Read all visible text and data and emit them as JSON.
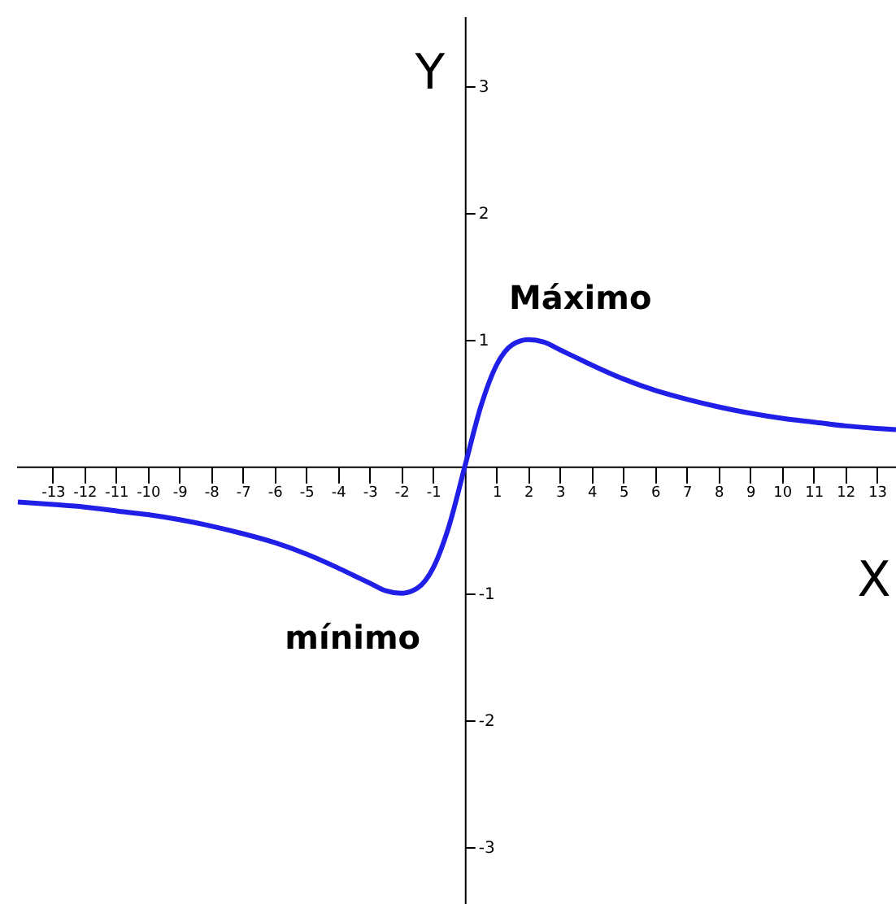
{
  "chart_data": {
    "type": "line",
    "xlabel": "X",
    "ylabel": "Y",
    "x": [
      -14.1,
      -13,
      -12,
      -11,
      -10,
      -9,
      -8,
      -7,
      -6,
      -5,
      -4,
      -3.5,
      -3,
      -2.5,
      -2,
      -1.5,
      -1,
      -0.5,
      0,
      0.5,
      1,
      1.5,
      2,
      2.5,
      3,
      3.5,
      4,
      5,
      6,
      7,
      8,
      9,
      10,
      11,
      12,
      13,
      13.6
    ],
    "series": [
      {
        "color": "#1f1fe8",
        "values": [
          -0.28,
          -0.3,
          -0.32,
          -0.35,
          -0.38,
          -0.42,
          -0.47,
          -0.53,
          -0.6,
          -0.69,
          -0.8,
          -0.86,
          -0.92,
          -0.98,
          -1.0,
          -0.96,
          -0.8,
          -0.47,
          0,
          0.47,
          0.8,
          0.96,
          1.0,
          0.98,
          0.92,
          0.86,
          0.8,
          0.69,
          0.6,
          0.53,
          0.47,
          0.42,
          0.38,
          0.35,
          0.32,
          0.3,
          0.29
        ]
      }
    ],
    "xlim": [
      -14.15,
      13.6
    ],
    "ylim": [
      -3.45,
      3.55
    ],
    "xticks": [
      -13,
      -12,
      -11,
      -10,
      -9,
      -8,
      -7,
      -6,
      -5,
      -4,
      -3,
      -2,
      -1,
      1,
      2,
      3,
      4,
      5,
      6,
      7,
      8,
      9,
      10,
      11,
      12,
      13
    ],
    "yticks": [
      -3,
      -2,
      -1,
      1,
      2,
      3
    ],
    "annotations": [
      {
        "text": "Máximo",
        "x": 2,
        "y": 1
      },
      {
        "text": "mínimo",
        "x": -2,
        "y": -1
      }
    ],
    "grid": false,
    "marker": "none",
    "line_style": "solid"
  }
}
